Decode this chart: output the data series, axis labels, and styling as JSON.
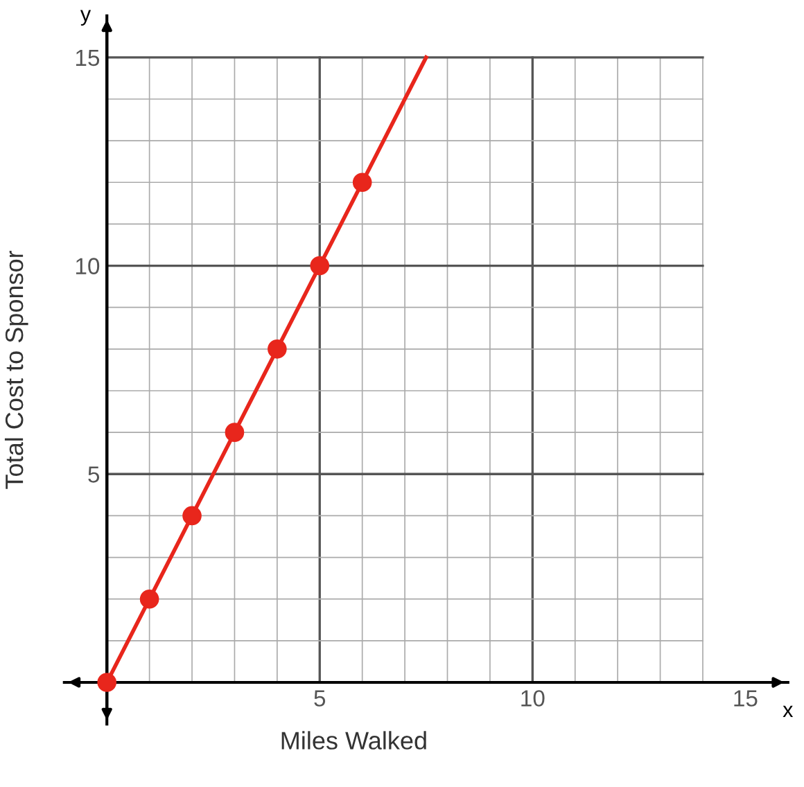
{
  "chart_data": {
    "type": "scatter",
    "xlabel": "Miles Walked",
    "ylabel": "Total Cost to Sponsor",
    "series": [
      {
        "color": "#e8261c",
        "x": [
          0,
          1,
          2,
          3,
          4,
          5,
          6
        ],
        "values": [
          0,
          2,
          4,
          6,
          8,
          10,
          12
        ],
        "marker": "circle"
      },
      {
        "type": "line",
        "color": "#e8261c",
        "x": [
          0,
          7.5
        ],
        "values": [
          0,
          15
        ],
        "marker": "none"
      }
    ],
    "xlim": [
      -1,
      16
    ],
    "ylim": [
      -1,
      16
    ],
    "xticks": [
      5,
      10,
      15
    ],
    "yticks": [
      5,
      10,
      15
    ],
    "grid": true,
    "line_style": "solid",
    "annotations": [
      "x",
      "y"
    ]
  }
}
